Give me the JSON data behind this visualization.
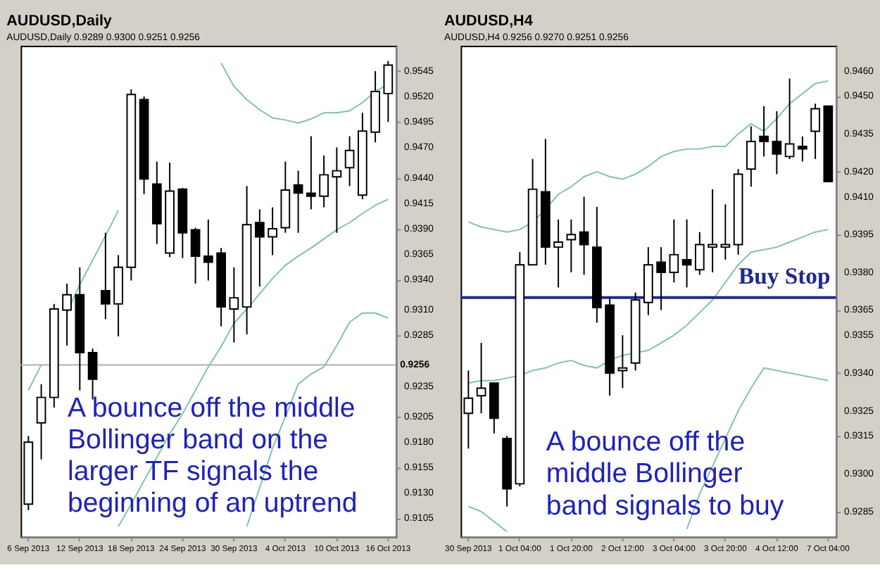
{
  "chart_data": [
    {
      "type": "candlestick",
      "title": "AUDUSD,Daily",
      "subtitle": "AUDUSD,Daily 0.9289 0.9300 0.9251 0.9256",
      "categories": [
        "6 Sep 2013",
        null,
        null,
        null,
        "12 Sep 2013",
        null,
        null,
        null,
        "18 Sep 2013",
        null,
        null,
        null,
        "24 Sep 2013",
        null,
        null,
        null,
        "30 Sep 2013",
        null,
        null,
        null,
        "4 Oct 2013",
        null,
        null,
        null,
        "10 Oct 2013",
        null,
        null,
        null,
        "16 Oct 2013"
      ],
      "ohlc": [
        [
          0.9119,
          0.9186,
          0.9113,
          0.918
        ],
        [
          0.9199,
          0.9237,
          0.9163,
          0.9224
        ],
        [
          0.9224,
          0.9316,
          0.9214,
          0.9311
        ],
        [
          0.931,
          0.9336,
          0.9275,
          0.9325
        ],
        [
          0.9325,
          0.9352,
          0.9231,
          0.9268
        ],
        [
          0.9268,
          0.9272,
          0.9222,
          0.9242
        ],
        [
          0.9329,
          0.9386,
          0.9301,
          0.9316
        ],
        [
          0.9316,
          0.9364,
          0.9284,
          0.9352
        ],
        [
          0.9352,
          0.9527,
          0.9339,
          0.9522
        ],
        [
          0.9517,
          0.952,
          0.9424,
          0.9439
        ],
        [
          0.9434,
          0.9456,
          0.9375,
          0.9395
        ],
        [
          0.9366,
          0.9455,
          0.9362,
          0.9427
        ],
        [
          0.9429,
          0.943,
          0.9361,
          0.9386
        ],
        [
          0.9389,
          0.9391,
          0.9336,
          0.9363
        ],
        [
          0.9363,
          0.9399,
          0.9339,
          0.9357
        ],
        [
          0.9366,
          0.9371,
          0.9294,
          0.9313
        ],
        [
          0.9311,
          0.9352,
          0.9278,
          0.9322
        ],
        [
          0.9313,
          0.9432,
          0.9286,
          0.9394
        ],
        [
          0.9396,
          0.9409,
          0.9333,
          0.9382
        ],
        [
          0.9382,
          0.9411,
          0.9364,
          0.939
        ],
        [
          0.9391,
          0.9456,
          0.9386,
          0.9428
        ],
        [
          0.9433,
          0.9447,
          0.9386,
          0.9425
        ],
        [
          0.9425,
          0.9481,
          0.9409,
          0.9422
        ],
        [
          0.9422,
          0.9462,
          0.9411,
          0.9443
        ],
        [
          0.9441,
          0.947,
          0.9386,
          0.9447
        ],
        [
          0.945,
          0.9481,
          0.9432,
          0.9467
        ],
        [
          0.9423,
          0.9504,
          0.9419,
          0.9486
        ],
        [
          0.9485,
          0.9545,
          0.9475,
          0.9525
        ],
        [
          0.9523,
          0.9555,
          0.9495,
          0.9551
        ]
      ],
      "colors": [
        "#ffffff",
        "#ffffff",
        "#ffffff",
        "#ffffff",
        "#000000",
        "#000000",
        "#000000",
        "#ffffff",
        "#ffffff",
        "#000000",
        "#000000",
        "#ffffff",
        "#000000",
        "#000000",
        "#000000",
        "#000000",
        "#ffffff",
        "#ffffff",
        "#000000",
        "#ffffff",
        "#ffffff",
        "#000000",
        "#000000",
        "#ffffff",
        "#ffffff",
        "#ffffff",
        "#ffffff",
        "#ffffff",
        "#ffffff"
      ],
      "series": [
        {
          "type": "line",
          "color": "#82c3a5",
          "values": [
            0.9231,
            0.9256,
            null,
            0.9307,
            0.9335,
            0.9359,
            0.9383,
            0.9408,
            null,
            null,
            null,
            null,
            null,
            null,
            null,
            0.9553,
            0.953,
            0.9517,
            0.9507,
            0.9499,
            0.9497,
            0.9494,
            0.9498,
            0.9504,
            0.9504,
            0.9506,
            0.9514,
            0.9525,
            0.9532
          ]
        },
        {
          "type": "line",
          "color": "#82c3a5",
          "values": [
            null,
            null,
            null,
            null,
            null,
            null,
            null,
            0.9097,
            0.9119,
            0.9142,
            0.9165,
            0.9188,
            0.9208,
            0.9231,
            0.9254,
            0.9274,
            0.9297,
            0.9311,
            0.9326,
            0.9341,
            0.9354,
            0.9363,
            0.9371,
            0.938,
            0.9389,
            0.9396,
            0.9405,
            0.9413,
            0.9419
          ]
        },
        {
          "type": "line",
          "color": "#82c3a5",
          "values": [
            null,
            null,
            null,
            null,
            null,
            null,
            null,
            null,
            null,
            null,
            null,
            null,
            null,
            null,
            null,
            null,
            null,
            0.9097,
            0.9135,
            0.9174,
            0.9205,
            0.9237,
            0.9247,
            0.9254,
            0.9275,
            0.9298,
            0.9307,
            0.9307,
            0.9302
          ]
        }
      ],
      "ylim": [
        0.9087,
        0.957
      ],
      "yticks": [
        0.9545,
        {
          "value": 0.952,
          "label": "0.9520"
        },
        0.9495,
        {
          "value": 0.947,
          "label": "0.9470"
        },
        {
          "value": 0.944,
          "label": "0.9440"
        },
        0.9415,
        {
          "value": 0.939,
          "label": "0.9390"
        },
        0.9365,
        {
          "value": 0.934,
          "label": "0.9340"
        },
        {
          "value": 0.931,
          "label": "0.9310"
        },
        0.9285,
        0.9235,
        0.9205,
        {
          "value": 0.918,
          "label": "0.9180"
        },
        0.9155,
        {
          "value": 0.913,
          "label": "0.9130"
        },
        0.9105
      ],
      "ref_lines": [
        {
          "axis": "y",
          "value": 0.9256,
          "label": "0.9256",
          "color": "#b0b0b0"
        }
      ],
      "annotations": [
        "A bounce off the middle Bollinger band on the larger TF signals the beginning of an uptrend"
      ]
    },
    {
      "type": "candlestick",
      "title": "AUDUSD,H4",
      "subtitle": "AUDUSD,H4 0.9256 0.9270 0.9251 0.9256",
      "categories": [
        "30 Sep 2013",
        null,
        null,
        null,
        "1 Oct 04:00",
        null,
        null,
        null,
        "1 Oct 20:00",
        null,
        null,
        null,
        "2 Oct 12:00",
        null,
        null,
        null,
        "3 Oct 04:00",
        null,
        null,
        null,
        "3 Oct 20:00",
        null,
        null,
        null,
        "4 Oct 12:00",
        null,
        null,
        null,
        "7 Oct 04:00"
      ],
      "ohlc": [
        [
          0.9324,
          0.9341,
          0.931,
          0.933
        ],
        [
          0.9331,
          0.9352,
          0.9324,
          0.9334
        ],
        [
          0.9336,
          0.9336,
          0.9316,
          0.9322
        ],
        [
          0.9314,
          0.9315,
          0.9287,
          0.9294
        ],
        [
          0.9296,
          0.9388,
          0.9295,
          0.9383
        ],
        [
          0.9383,
          0.9425,
          0.9383,
          0.9413
        ],
        [
          0.9412,
          0.9433,
          0.9383,
          0.939
        ],
        [
          0.939,
          0.9401,
          0.9374,
          0.9392
        ],
        [
          0.9393,
          0.9401,
          0.938,
          0.9395
        ],
        [
          0.9396,
          0.941,
          0.9379,
          0.9391
        ],
        [
          0.939,
          0.9406,
          0.936,
          0.9366
        ],
        [
          0.9367,
          0.937,
          0.9331,
          0.934
        ],
        [
          0.9341,
          0.9355,
          0.9334,
          0.9342
        ],
        [
          0.9344,
          0.9372,
          0.9341,
          0.9369
        ],
        [
          0.9368,
          0.939,
          0.9363,
          0.9383
        ],
        [
          0.9384,
          0.939,
          0.9365,
          0.938
        ],
        [
          0.938,
          0.9401,
          0.9376,
          0.9387
        ],
        [
          0.9385,
          0.9401,
          0.9374,
          0.9383
        ],
        [
          0.9381,
          0.9396,
          0.9379,
          0.9391
        ],
        [
          0.939,
          0.9413,
          0.938,
          0.9391
        ],
        [
          0.939,
          0.9407,
          0.9385,
          0.9391
        ],
        [
          0.9391,
          0.9421,
          0.9387,
          0.9419
        ],
        [
          0.9421,
          0.9438,
          0.9414,
          0.9432
        ],
        [
          0.9434,
          0.9446,
          0.9426,
          0.9432
        ],
        [
          0.9432,
          0.9444,
          0.9419,
          0.9427
        ],
        [
          0.9426,
          0.9457,
          0.9425,
          0.9431
        ],
        [
          0.943,
          0.9434,
          0.9424,
          0.9429
        ],
        [
          0.9436,
          0.9447,
          0.9425,
          0.9445
        ],
        [
          0.9446,
          0.9446,
          0.9416,
          0.9416
        ]
      ],
      "colors": [
        "#ffffff",
        "#ffffff",
        "#000000",
        "#000000",
        "#ffffff",
        "#ffffff",
        "#000000",
        "#ffffff",
        "#ffffff",
        "#000000",
        "#000000",
        "#000000",
        "#ffffff",
        "#ffffff",
        "#ffffff",
        "#000000",
        "#ffffff",
        "#000000",
        "#ffffff",
        "#ffffff",
        "#ffffff",
        "#ffffff",
        "#ffffff",
        "#000000",
        "#000000",
        "#ffffff",
        "#000000",
        "#ffffff",
        "#000000"
      ],
      "series": [
        {
          "type": "line",
          "color": "#82c3a5",
          "values": [
            0.94,
            0.9398,
            0.9397,
            0.9396,
            0.9397,
            0.94,
            0.9405,
            0.9411,
            0.9414,
            0.9418,
            0.942,
            0.9418,
            0.9417,
            0.9419,
            0.9422,
            0.9426,
            0.9428,
            0.9429,
            0.9429,
            0.943,
            0.943,
            0.9435,
            0.9439,
            0.9436,
            0.9441,
            0.9447,
            0.9451,
            0.9455,
            0.9456
          ]
        },
        {
          "type": "line",
          "color": "#82c3a5",
          "values": [
            0.9336,
            0.9337,
            0.9337,
            0.9338,
            0.9339,
            0.9341,
            0.9342,
            0.9344,
            0.9345,
            0.9343,
            0.9342,
            0.9345,
            0.9347,
            0.9348,
            0.9349,
            0.9352,
            0.9355,
            0.9359,
            0.9364,
            0.9369,
            0.9376,
            0.9383,
            0.9388,
            0.9389,
            0.939,
            0.9392,
            0.9394,
            0.9396,
            0.9397
          ]
        },
        {
          "type": "line",
          "color": "#82c3a5",
          "values": [
            0.9287,
            0.9285,
            0.9281,
            0.9277,
            null,
            null,
            null,
            null,
            null,
            null,
            null,
            null,
            null,
            null,
            null,
            null,
            null,
            0.9278,
            0.9292,
            0.9303,
            0.9314,
            0.9325,
            0.9334,
            0.9342,
            0.9341,
            0.934,
            0.9339,
            0.9338,
            0.9337
          ]
        }
      ],
      "ylim": [
        0.9275,
        0.947
      ],
      "yticks": [
        {
          "value": 0.946,
          "label": "0.9460"
        },
        {
          "value": 0.945,
          "label": "0.9450"
        },
        0.9435,
        {
          "value": 0.942,
          "label": "0.9420"
        },
        {
          "value": 0.941,
          "label": "0.9410"
        },
        0.9395,
        {
          "value": 0.938,
          "label": "0.9380"
        },
        0.9365,
        0.9355,
        {
          "value": 0.934,
          "label": "0.9340"
        },
        0.9325,
        0.9315,
        {
          "value": 0.93,
          "label": "0.9300"
        },
        0.9285
      ],
      "ref_lines": [
        {
          "axis": "y",
          "value": 0.937,
          "label": "Buy Stop",
          "color": "#1f2a8c"
        }
      ],
      "annotations": [
        "A bounce off the middle Bollinger band signals to buy"
      ]
    }
  ]
}
